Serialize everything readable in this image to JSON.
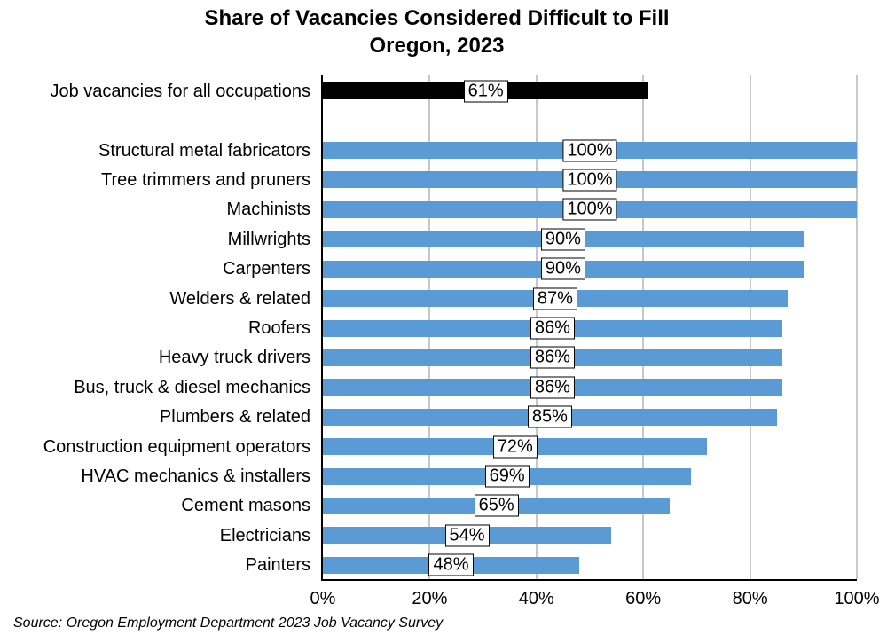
{
  "title": {
    "line1": "Share of Vacancies Considered Difficult to Fill",
    "line2": "Oregon, 2023"
  },
  "source_note": "Source: Oregon Employment Department 2023 Job Vacancy Survey",
  "colors": {
    "bar_default": "#5B9BD5",
    "bar_highlight": "#000000",
    "gridline": "#C8C8C8",
    "axis": "#000000",
    "value_box_bg": "#FFFFFF",
    "value_box_border": "#000000"
  },
  "chart_data": {
    "type": "bar",
    "orientation": "horizontal",
    "title": "Share of Vacancies Considered Difficult to Fill",
    "subtitle": "Oregon, 2023",
    "categories": [
      "Job vacancies for all occupations",
      "Structural metal fabricators",
      "Tree trimmers and pruners",
      "Machinists",
      "Millwrights",
      "Carpenters",
      "Welders & related",
      "Roofers",
      "Heavy truck drivers",
      "Bus, truck & diesel mechanics",
      "Plumbers & related",
      "Construction equipment operators",
      "HVAC mechanics & installers",
      "Cement masons",
      "Electricians",
      "Painters"
    ],
    "values": [
      61,
      100,
      100,
      100,
      90,
      90,
      87,
      86,
      86,
      86,
      85,
      72,
      69,
      65,
      54,
      48
    ],
    "value_labels": [
      "61%",
      "100%",
      "100%",
      "100%",
      "90%",
      "90%",
      "87%",
      "86%",
      "86%",
      "86%",
      "85%",
      "72%",
      "69%",
      "65%",
      "54%",
      "48%"
    ],
    "highlight_index": 0,
    "separator_after_index": 0,
    "xlabel": "",
    "ylabel": "",
    "xlim": [
      0,
      100
    ],
    "x_ticks": [
      0,
      20,
      40,
      60,
      80,
      100
    ],
    "x_tick_labels": [
      "0%",
      "20%",
      "40%",
      "60%",
      "80%",
      "100%"
    ],
    "grid": "vertical-only",
    "legend": "none",
    "source": "Source: Oregon Employment Department 2023 Job Vacancy Survey"
  }
}
